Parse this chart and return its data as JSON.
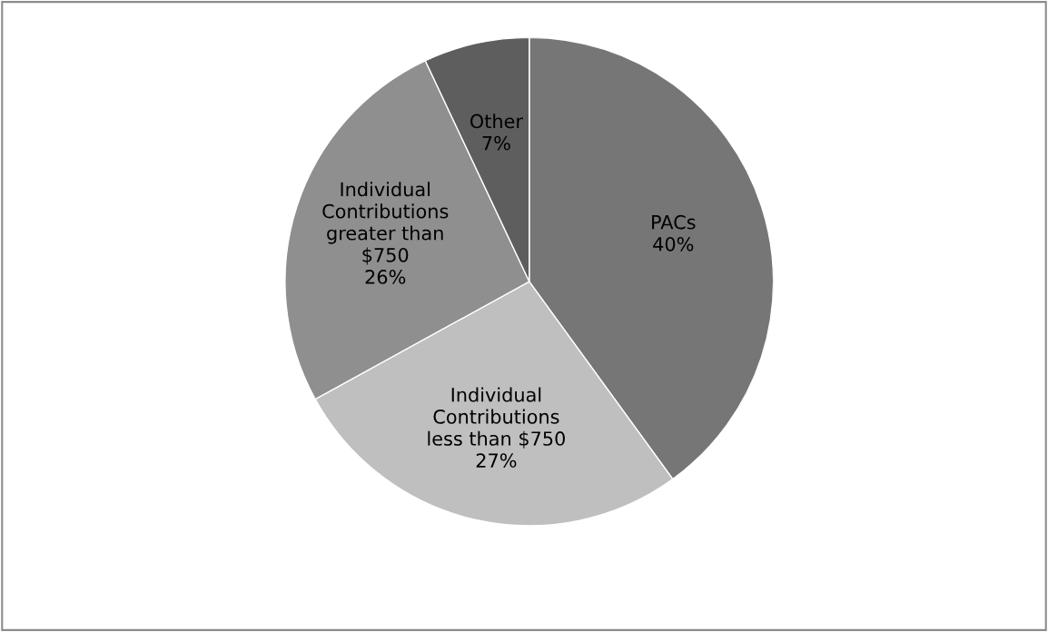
{
  "chart_data": {
    "type": "pie",
    "categories": [
      "PACs",
      "Individual Contributions less than $750",
      "Individual Contributions greater than $750",
      "Other"
    ],
    "values": [
      40,
      27,
      26,
      7
    ],
    "colors": [
      "#767676",
      "#bfbfbf",
      "#8f8f8f",
      "#5e5e5e"
    ],
    "value_labels": [
      "40%",
      "27%",
      "26%",
      "7%"
    ],
    "legend": false
  }
}
